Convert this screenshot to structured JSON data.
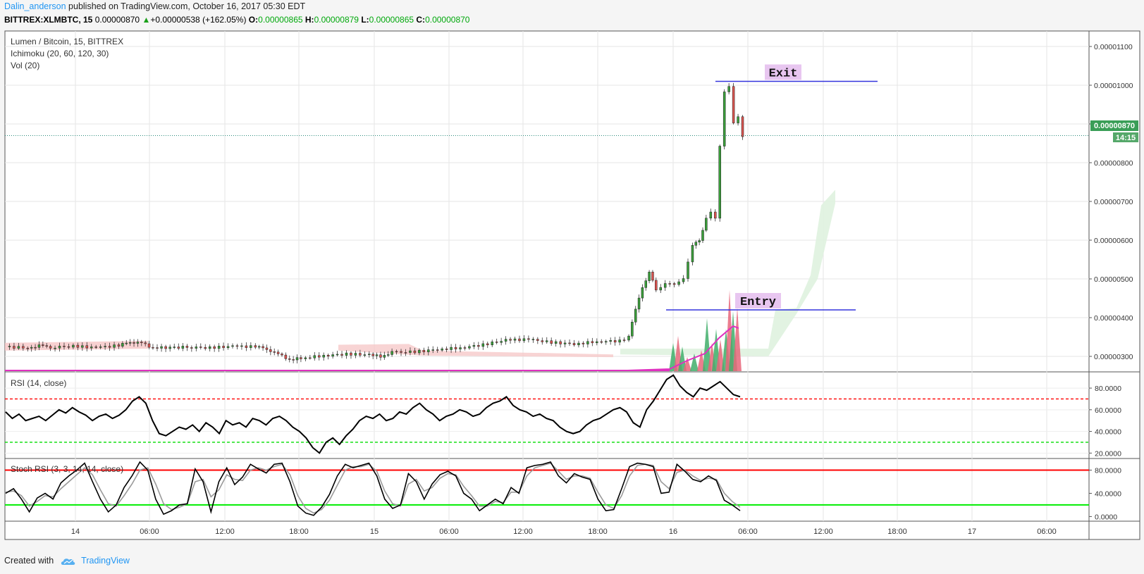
{
  "header": {
    "author": "Dalin_anderson",
    "published_text": "published on TradingView.com, October 16, 2017 05:30 EDT"
  },
  "ohlc": {
    "symbol": "BITTREX:XLMBTC, 15",
    "last": "0.00000870",
    "change": "+0.00000538 (+162.05%)",
    "o_label": "O:",
    "o": "0.00000865",
    "h_label": "H:",
    "h": "0.00000879",
    "l_label": "L:",
    "l": "0.00000865",
    "c_label": "C:",
    "c": "0.00000870"
  },
  "legend": {
    "title": "Lumen / Bitcoin, 15, BITTREX",
    "ichimoku": "Ichimoku (20, 60, 120, 30)",
    "vol": "Vol (20)",
    "rsi": "RSI (14, close)",
    "stoch": "Stoch RSI (3, 3, 14, 14, close)"
  },
  "price_badge": {
    "value": "0.00000870",
    "countdown": "14:15"
  },
  "footer": {
    "created_with": "Created with",
    "brand": "TradingView"
  },
  "colors": {
    "up": "#3a9e3a",
    "down": "#d9534f",
    "level_line": "#3333dd",
    "label_bg": "#e8c6f0",
    "rsi_upper": "#ff0000",
    "rsi_lower": "#00dd00",
    "stoch_upper": "#ff0000",
    "stoch_lower": "#00ee00",
    "volume_ma": "#e030c0"
  },
  "chart_data": [
    {
      "type": "candlestick",
      "title": "Lumen / Bitcoin, 15, BITTREX",
      "y_ticks": [
        "0.00000300",
        "0.00000400",
        "0.00000500",
        "0.00000600",
        "0.00000700",
        "0.00000800",
        "0.00000900",
        "0.00001000",
        "0.00001100"
      ],
      "ylim": [
        2.6e-06,
        1.14e-05
      ],
      "x_ticks": [
        "14",
        "06:00",
        "12:00",
        "18:00",
        "15",
        "06:00",
        "12:00",
        "18:00",
        "16",
        "06:00",
        "12:00",
        "18:00",
        "17",
        "06:00"
      ],
      "close_path": [
        [
          0.0,
          3.25
        ],
        [
          1.0,
          3.22
        ],
        [
          1.5,
          3.27
        ],
        [
          2.0,
          3.24
        ],
        [
          3.0,
          3.26
        ],
        [
          4.0,
          3.23
        ],
        [
          5.0,
          3.28
        ],
        [
          5.5,
          3.38
        ],
        [
          6.0,
          3.34
        ],
        [
          6.5,
          3.22
        ],
        [
          8.0,
          3.24
        ],
        [
          9.0,
          3.22
        ],
        [
          10.0,
          3.26
        ],
        [
          11.0,
          3.25
        ],
        [
          11.5,
          3.2
        ],
        [
          12.0,
          3.05
        ],
        [
          12.5,
          2.92
        ],
        [
          13.0,
          2.95
        ],
        [
          14.0,
          3.02
        ],
        [
          15.0,
          3.06
        ],
        [
          16.0,
          3.04
        ],
        [
          16.5,
          3.0
        ],
        [
          17.0,
          3.1
        ],
        [
          18.0,
          3.12
        ],
        [
          19.0,
          3.18
        ],
        [
          20.0,
          3.22
        ],
        [
          21.0,
          3.3
        ],
        [
          22.0,
          3.42
        ],
        [
          23.0,
          3.44
        ],
        [
          24.0,
          3.36
        ],
        [
          25.0,
          3.32
        ],
        [
          26.0,
          3.38
        ],
        [
          27.0,
          3.4
        ],
        [
          27.4,
          3.5
        ],
        [
          27.7,
          4.22
        ],
        [
          28.0,
          4.8
        ],
        [
          28.3,
          5.15
        ],
        [
          28.6,
          4.72
        ],
        [
          29.0,
          4.88
        ],
        [
          29.4,
          4.85
        ],
        [
          29.8,
          5.02
        ],
        [
          30.2,
          5.85
        ],
        [
          30.5,
          6.02
        ],
        [
          30.8,
          6.55
        ],
        [
          31.0,
          6.7
        ],
        [
          31.2,
          6.55
        ],
        [
          31.4,
          8.45
        ],
        [
          31.6,
          9.85
        ],
        [
          31.8,
          9.95
        ],
        [
          32.0,
          9.0
        ],
        [
          32.2,
          9.2
        ],
        [
          32.4,
          8.7
        ]
      ],
      "levels": [
        {
          "label": "Exit",
          "price": 1.01e-05
        },
        {
          "label": "Entry",
          "price": 4.2e-06
        }
      ],
      "last_price": 8.7e-06
    },
    {
      "type": "line",
      "title": "RSI (14, close)",
      "y_ticks": [
        "20.0000",
        "40.0000",
        "60.0000",
        "80.0000"
      ],
      "ylim": [
        15,
        95
      ],
      "bands": [
        70,
        30
      ],
      "values": [
        58,
        52,
        56,
        50,
        52,
        54,
        50,
        55,
        60,
        57,
        62,
        58,
        55,
        50,
        54,
        56,
        52,
        55,
        60,
        68,
        72,
        66,
        50,
        38,
        36,
        40,
        44,
        42,
        46,
        40,
        48,
        44,
        38,
        50,
        46,
        48,
        44,
        52,
        50,
        46,
        52,
        54,
        50,
        44,
        40,
        34,
        25,
        20,
        30,
        34,
        28,
        36,
        42,
        50,
        54,
        52,
        56,
        50,
        52,
        58,
        56,
        62,
        66,
        60,
        56,
        50,
        54,
        56,
        60,
        58,
        54,
        56,
        62,
        66,
        68,
        72,
        64,
        60,
        58,
        54,
        56,
        52,
        50,
        44,
        40,
        38,
        40,
        46,
        50,
        52,
        56,
        60,
        62,
        58,
        48,
        44,
        60,
        68,
        78,
        88,
        92,
        82,
        76,
        72,
        80,
        78,
        82,
        86,
        80,
        74,
        72
      ]
    },
    {
      "type": "line",
      "title": "Stoch RSI (3, 3, 14, 14, close)",
      "y_ticks": [
        "0.0000",
        "40.0000",
        "80.0000"
      ],
      "ylim": [
        -8,
        100
      ],
      "bands": [
        80,
        20
      ],
      "k": [
        40,
        48,
        30,
        8,
        32,
        40,
        30,
        58,
        70,
        80,
        92,
        60,
        30,
        8,
        20,
        50,
        70,
        94,
        80,
        30,
        4,
        10,
        20,
        22,
        82,
        60,
        8,
        60,
        84,
        55,
        68,
        90,
        82,
        75,
        90,
        92,
        60,
        18,
        6,
        2,
        16,
        38,
        70,
        90,
        84,
        88,
        92,
        70,
        30,
        14,
        20,
        74,
        60,
        30,
        56,
        72,
        78,
        70,
        40,
        30,
        10,
        20,
        30,
        22,
        50,
        40,
        84,
        88,
        90,
        94,
        70,
        58,
        74,
        68,
        64,
        30,
        10,
        12,
        48,
        86,
        92,
        90,
        86,
        40,
        42,
        90,
        78,
        64,
        60,
        70,
        62,
        28,
        20,
        10
      ],
      "d": [
        42,
        44,
        36,
        18,
        26,
        36,
        34,
        48,
        60,
        72,
        84,
        72,
        46,
        22,
        18,
        36,
        56,
        80,
        84,
        56,
        22,
        12,
        16,
        22,
        60,
        64,
        34,
        46,
        72,
        64,
        62,
        80,
        84,
        80,
        86,
        90,
        72,
        36,
        14,
        6,
        12,
        28,
        54,
        80,
        86,
        86,
        90,
        78,
        44,
        22,
        18,
        56,
        64,
        44,
        50,
        66,
        74,
        72,
        52,
        36,
        18,
        18,
        26,
        24,
        42,
        42,
        70,
        84,
        88,
        92,
        78,
        64,
        70,
        70,
        66,
        42,
        20,
        14,
        36,
        70,
        88,
        90,
        88,
        60,
        48,
        76,
        80,
        70,
        62,
        66,
        64,
        40,
        26,
        16
      ]
    }
  ]
}
